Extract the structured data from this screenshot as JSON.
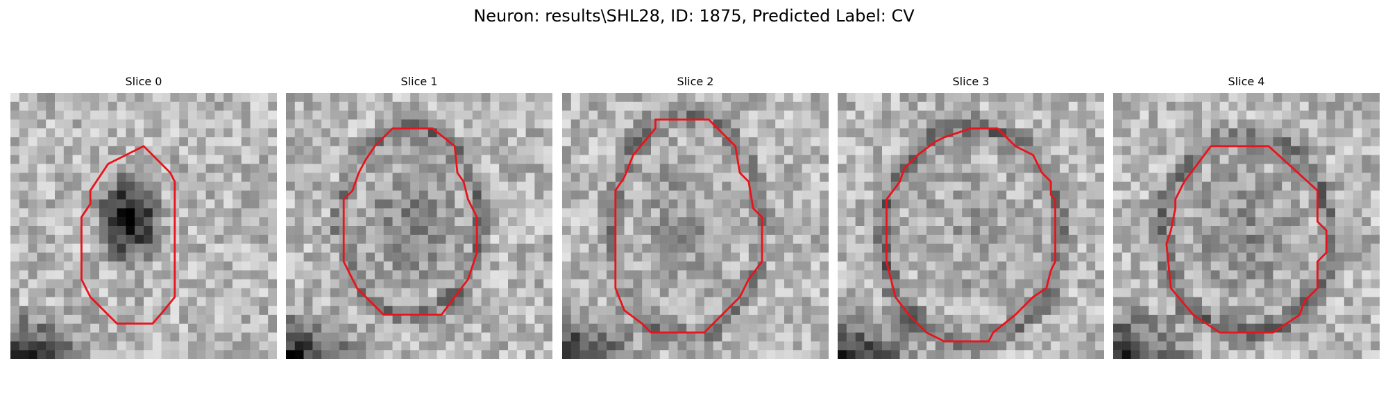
{
  "title": "Neuron: results\\SHL28, ID: 1875, Predicted Label: CV",
  "panels": [
    {
      "title": "Slice 0"
    },
    {
      "title": "Slice 1"
    },
    {
      "title": "Slice 2"
    },
    {
      "title": "Slice 3"
    },
    {
      "title": "Slice 4"
    }
  ],
  "colors": {
    "contour": "#e8141c",
    "background": "#ffffff"
  },
  "colormap": "grayscale"
}
